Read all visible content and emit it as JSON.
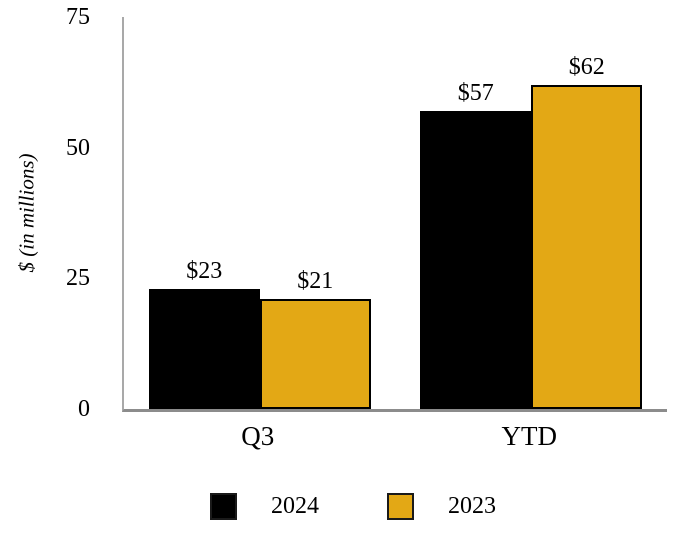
{
  "chart_data": {
    "type": "bar",
    "title": "",
    "categories": [
      "Q3",
      "YTD"
    ],
    "series": [
      {
        "name": "2024",
        "color": "#000000",
        "values": [
          23,
          57
        ],
        "labels": [
          "$23",
          "$57"
        ]
      },
      {
        "name": "2023",
        "color": "#E3A815",
        "values": [
          21,
          62
        ],
        "labels": [
          "$21",
          "$62"
        ]
      }
    ],
    "xlabel": "",
    "ylabel": "$ (in millions)",
    "yticks": [
      0,
      25,
      50,
      75
    ],
    "ylim": [
      0,
      75
    ],
    "grid": false,
    "legend_position": "bottom",
    "bar_border_color": "#000000",
    "axis_color": "#8c8c8c",
    "background_color": "#ffffff"
  }
}
